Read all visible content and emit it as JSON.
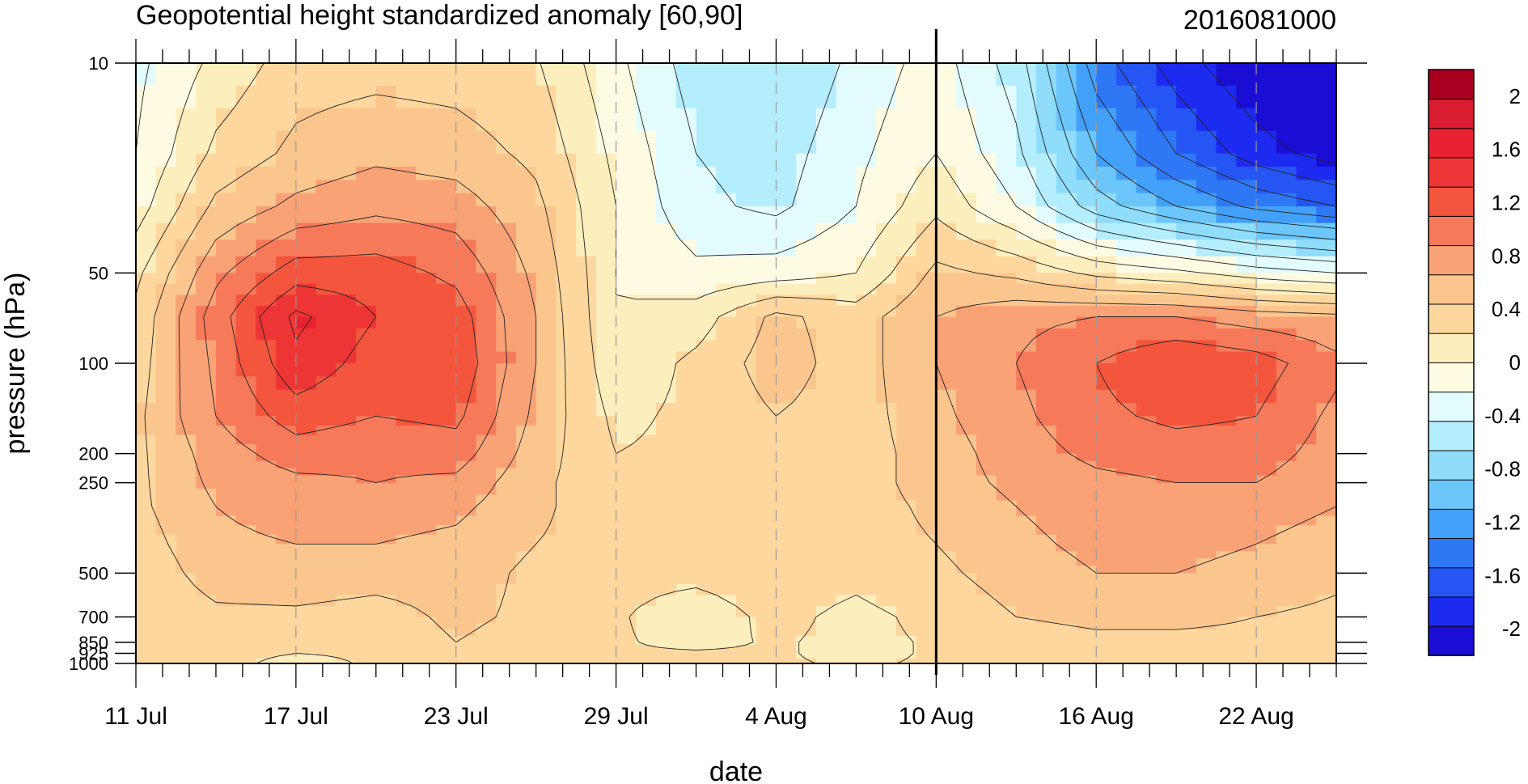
{
  "chart_data": {
    "type": "heatmap",
    "title": "Geopotential height standardized anomaly [60,90]",
    "subtitle": "2016081000",
    "xlabel": "date",
    "ylabel": "pressure (hPa)",
    "x_start_date": "2016-07-11",
    "x_end_date": "2016-08-25",
    "marked_date": "2016-08-10",
    "x_ticks": [
      {
        "date": "2016-07-11",
        "label": "11 Jul"
      },
      {
        "date": "2016-07-17",
        "label": "17 Jul"
      },
      {
        "date": "2016-07-23",
        "label": "23 Jul"
      },
      {
        "date": "2016-07-29",
        "label": "29 Jul"
      },
      {
        "date": "2016-08-04",
        "label": "4 Aug"
      },
      {
        "date": "2016-08-10",
        "label": "10 Aug"
      },
      {
        "date": "2016-08-16",
        "label": "16 Aug"
      },
      {
        "date": "2016-08-22",
        "label": "22 Aug"
      }
    ],
    "y_scale": "log",
    "ylim": [
      1000,
      10
    ],
    "y_ticks": [
      {
        "value": 10,
        "label": "10"
      },
      {
        "value": 50,
        "label": "50"
      },
      {
        "value": 100,
        "label": "100"
      },
      {
        "value": 200,
        "label": "200"
      },
      {
        "value": 250,
        "label": "250"
      },
      {
        "value": 500,
        "label": "500"
      },
      {
        "value": 700,
        "label": "700"
      },
      {
        "value": 850,
        "label": "850"
      },
      {
        "value": 925,
        "label": "925"
      },
      {
        "value": 1000,
        "label": "1000"
      }
    ],
    "contour_levels": [
      -2.2,
      -2.0,
      -1.8,
      -1.6,
      -1.4,
      -1.2,
      -1.0,
      -0.8,
      -0.6,
      -0.4,
      -0.2,
      0,
      0.2,
      0.4,
      0.6,
      0.8,
      1.0,
      1.2,
      1.4,
      1.6,
      1.8,
      2.0,
      2.2
    ],
    "colorbar": {
      "colors": [
        "#1a0ed4",
        "#1d2af0",
        "#2555f2",
        "#2f78f5",
        "#42a0f8",
        "#6cc6fa",
        "#8fdcfb",
        "#b4edfc",
        "#e2fbfc",
        "#fefbe2",
        "#fdeebd",
        "#fdd79d",
        "#fbc68e",
        "#f9a276",
        "#f6795a",
        "#f3553d",
        "#ee3535",
        "#e82233",
        "#d91c30",
        "#a8001e"
      ],
      "labels": [
        {
          "value": 2,
          "label": "2"
        },
        {
          "value": 1.6,
          "label": "1.6"
        },
        {
          "value": 1.2,
          "label": "1.2"
        },
        {
          "value": 0.8,
          "label": "0.8"
        },
        {
          "value": 0.4,
          "label": "0.4"
        },
        {
          "value": 0,
          "label": "0"
        },
        {
          "value": -0.4,
          "label": "-0.4"
        },
        {
          "value": -0.8,
          "label": "-0.8"
        },
        {
          "value": -1.2,
          "label": "-1.2"
        },
        {
          "value": -1.6,
          "label": "-1.6"
        },
        {
          "value": -2,
          "label": "-2"
        }
      ]
    },
    "grid": {
      "days": [
        0,
        3,
        6,
        9,
        12,
        15,
        18,
        21,
        24,
        27,
        30,
        33,
        36,
        39,
        42,
        45
      ],
      "levels": [
        10,
        20,
        30,
        50,
        70,
        100,
        150,
        200,
        250,
        300,
        400,
        500,
        700,
        850,
        925,
        1000
      ],
      "values": [
        [
          -0.45,
          -0.15,
          0.1,
          0.12,
          0.1,
          0.02,
          -0.35,
          -0.7,
          -0.8,
          -0.55,
          -0.3,
          -0.7,
          -1.5,
          -1.9,
          -2.2,
          -2.5
        ],
        [
          -0.4,
          0.05,
          0.25,
          0.35,
          0.3,
          0.15,
          -0.25,
          -0.6,
          -0.7,
          -0.45,
          -0.2,
          -0.55,
          -1.2,
          -1.6,
          -1.9,
          -2.1
        ],
        [
          -0.3,
          0.25,
          0.45,
          0.55,
          0.5,
          0.25,
          -0.2,
          -0.55,
          -0.65,
          -0.4,
          -0.05,
          -0.4,
          -0.9,
          -1.2,
          -1.45,
          -1.6
        ],
        [
          -0.05,
          0.55,
          0.9,
          0.9,
          0.75,
          0.35,
          -0.2,
          -0.35,
          -0.3,
          -0.2,
          0.25,
          0.15,
          -0.05,
          -0.15,
          -0.3,
          -0.4
        ],
        [
          0.05,
          0.7,
          1.25,
          1.0,
          0.9,
          0.4,
          -0.2,
          -0.1,
          0.25,
          0.1,
          0.4,
          0.55,
          0.6,
          0.6,
          0.5,
          0.45
        ],
        [
          0.1,
          0.65,
          1.15,
          0.9,
          0.95,
          0.4,
          -0.15,
          0.05,
          0.3,
          0.1,
          0.4,
          0.6,
          0.8,
          1.0,
          0.9,
          0.65
        ],
        [
          0.15,
          0.6,
          0.9,
          0.8,
          0.85,
          0.35,
          -0.05,
          0.05,
          0.2,
          0.1,
          0.35,
          0.55,
          0.75,
          0.85,
          0.8,
          0.55
        ],
        [
          0.15,
          0.5,
          0.7,
          0.65,
          0.7,
          0.3,
          0.0,
          0.05,
          0.15,
          0.1,
          0.3,
          0.5,
          0.65,
          0.7,
          0.7,
          0.5
        ],
        [
          0.15,
          0.45,
          0.55,
          0.6,
          0.55,
          0.25,
          0.05,
          0.05,
          0.1,
          0.1,
          0.3,
          0.45,
          0.55,
          0.6,
          0.6,
          0.45
        ],
        [
          0.15,
          0.4,
          0.5,
          0.5,
          0.45,
          0.25,
          0.05,
          0.05,
          0.1,
          0.1,
          0.25,
          0.4,
          0.5,
          0.55,
          0.5,
          0.4
        ],
        [
          0.1,
          0.35,
          0.4,
          0.4,
          0.35,
          0.2,
          0.1,
          0.05,
          0.1,
          0.1,
          0.2,
          0.35,
          0.45,
          0.45,
          0.4,
          0.3
        ],
        [
          0.05,
          0.3,
          0.35,
          0.3,
          0.3,
          0.15,
          0.05,
          0.05,
          0.1,
          0.05,
          0.15,
          0.3,
          0.4,
          0.4,
          0.35,
          0.25
        ],
        [
          0.02,
          0.15,
          0.15,
          0.1,
          0.25,
          0.15,
          0.02,
          -0.1,
          0.05,
          -0.05,
          0.05,
          0.2,
          0.25,
          0.25,
          0.2,
          0.15
        ],
        [
          0.02,
          0.1,
          0.05,
          0.05,
          0.2,
          0.1,
          0.02,
          -0.05,
          0.02,
          -0.05,
          0.02,
          0.1,
          0.15,
          0.15,
          0.15,
          0.1
        ],
        [
          0.02,
          0.05,
          0.0,
          0.02,
          0.15,
          0.1,
          0.02,
          0.02,
          0.02,
          -0.05,
          0.02,
          0.05,
          0.05,
          0.1,
          0.1,
          0.1
        ],
        [
          0.02,
          0.05,
          -0.05,
          0.02,
          0.15,
          0.1,
          0.02,
          0.02,
          0.02,
          -0.02,
          0.02,
          0.02,
          0.02,
          0.05,
          0.05,
          0.05
        ]
      ]
    }
  }
}
